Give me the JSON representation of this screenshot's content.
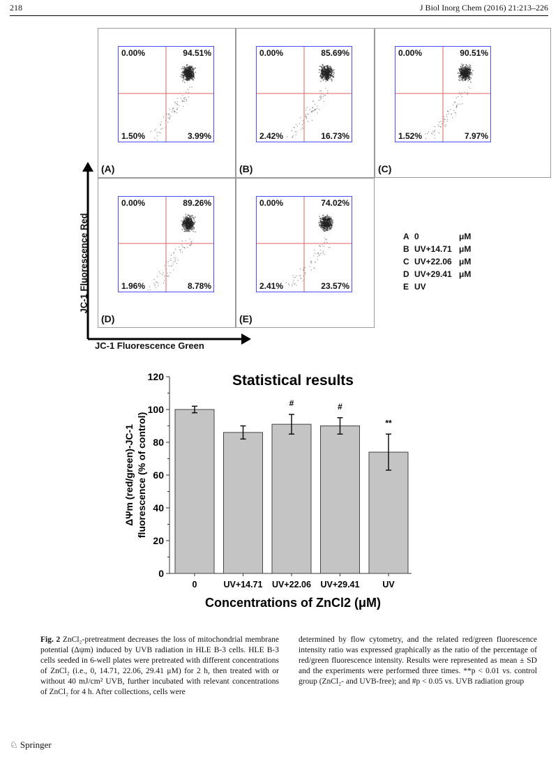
{
  "header": {
    "page_number": "218",
    "journal": "J Biol Inorg Chem (2016) 21:213–226"
  },
  "flow_panels": [
    {
      "label": "(A)",
      "ul": "0.00%",
      "ur": "94.51%",
      "ll": "1.50%",
      "lr": "3.99%"
    },
    {
      "label": "(B)",
      "ul": "0.00%",
      "ur": "85.69%",
      "ll": "2.42%",
      "lr": "16.73%"
    },
    {
      "label": "(C)",
      "ul": "0.00%",
      "ur": "90.51%",
      "ll": "1.52%",
      "lr": "7.97%"
    },
    {
      "label": "(D)",
      "ul": "0.00%",
      "ur": "89.26%",
      "ll": "1.96%",
      "lr": "8.78%"
    },
    {
      "label": "(E)",
      "ul": "0.00%",
      "ur": "74.02%",
      "ll": "2.41%",
      "lr": "23.57%"
    }
  ],
  "axes": {
    "y": "JC-1 Fluorescence Red",
    "x": "JC-1 Fluorescence Green"
  },
  "legend": [
    {
      "k": "A",
      "c": "0",
      "u": "μM"
    },
    {
      "k": "B",
      "c": "UV+14.71",
      "u": "μM"
    },
    {
      "k": "C",
      "c": "UV+22.06",
      "u": "μM"
    },
    {
      "k": "D",
      "c": "UV+29.41",
      "u": "μM"
    },
    {
      "k": "E",
      "c": "UV",
      "u": ""
    }
  ],
  "colors": {
    "bar": "#c4c4c4",
    "gate": "#e06060",
    "flow_axis": "#4a4aff"
  },
  "chart_data": {
    "type": "bar",
    "title": "Statistical results",
    "xlabel": "Concentrations of ZnCl2 (μM)",
    "ylabel": "ΔΨm (red/green)-JC-1 fluorescence (% of control)",
    "ylabel_line1": "ΔΨm (red/green)-JC-1",
    "ylabel_line2": "fluorescence (% of control)",
    "categories": [
      "0",
      "UV+14.71",
      "UV+22.06",
      "UV+29.41",
      "UV"
    ],
    "values": [
      100,
      86,
      91,
      90,
      74
    ],
    "errors": [
      2,
      4,
      6,
      5,
      11
    ],
    "annotations": [
      "",
      "",
      "#",
      "#",
      "**"
    ],
    "ylim": [
      0,
      120
    ],
    "yticks": [
      0,
      20,
      40,
      60,
      80,
      100,
      120
    ]
  },
  "caption": {
    "left": "ZnCl₂-pretreatment decreases the loss of mitochondrial membrane potential (Δψm) induced by UVB radiation in HLE B-3 cells. HLE B-3 cells seeded in 6-well plates were pretreated with different concentrations of ZnCl₂ (i.e., 0, 14.71, 22.06, 29.41 μM) for 2 h, then treated with or without 40 mJ/cm² UVB, further incubated with relevant concentrations of ZnCl₂ for 4 h. After collections, cells were",
    "fig": "Fig. 2",
    "right": "determined by flow cytometry, and the related red/green fluorescence intensity ratio was expressed graphically as the ratio of the percentage of red/green fluorescence intensity. Results were represented as mean ± SD and the experiments were performed three times. **p < 0.01 vs. control group (ZnCl₂- and UVB-free); and #p < 0.05 vs. UVB radiation group"
  },
  "footer": {
    "publisher": "Springer"
  }
}
